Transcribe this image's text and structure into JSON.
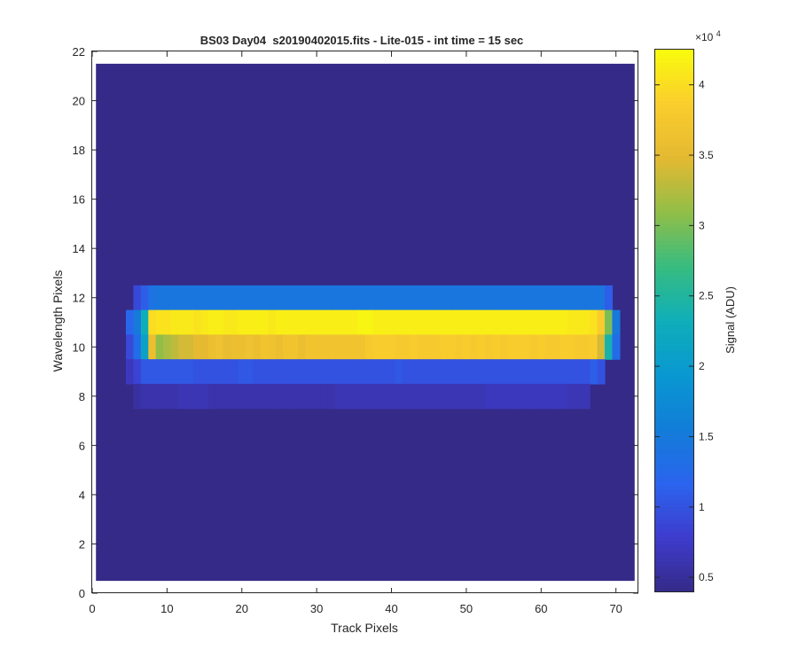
{
  "chart_data": {
    "type": "heatmap",
    "title": "BS03 Day04  s20190402015.fits - Lite-015 - int time = 15 sec",
    "xlabel": "Track Pixels",
    "ylabel": "Wavelength Pixels",
    "xlim": [
      0,
      73
    ],
    "ylim": [
      0,
      22
    ],
    "x_ticks": [
      0,
      10,
      20,
      30,
      40,
      50,
      60,
      70
    ],
    "y_ticks": [
      0,
      2,
      4,
      6,
      8,
      10,
      12,
      14,
      16,
      18,
      20,
      22
    ],
    "grid": false,
    "cell_x_range": [
      1,
      72
    ],
    "cell_y_range": [
      1,
      21
    ],
    "background_value": 4000,
    "colorbar": {
      "label": "Signal (ADU)",
      "multiplier_label": "×10",
      "multiplier_exponent": "4",
      "clim": [
        0.4,
        4.25
      ],
      "ticks": [
        0.5,
        1,
        1.5,
        2,
        2.5,
        3,
        3.5,
        4
      ],
      "tick_labels": [
        "0.5",
        "1",
        "1.5",
        "2",
        "2.5",
        "3",
        "3.5",
        "4"
      ],
      "colormap": "parula"
    },
    "rows": [
      {
        "wavelength_pixel": 12,
        "x_start": 6,
        "x_end": 69,
        "values": [
          9000,
          11000,
          14000,
          14500,
          14500,
          14500,
          14500,
          14500,
          14500,
          14500,
          14500,
          14500,
          14500,
          14500,
          14500,
          14500,
          14500,
          14500,
          14500,
          14500,
          14500,
          14500,
          14500,
          14500,
          14500,
          14500,
          14500,
          14500,
          14500,
          14500,
          14500,
          14500,
          14500,
          14500,
          14500,
          14500,
          14500,
          14500,
          14500,
          14500,
          14500,
          14500,
          14500,
          14500,
          14500,
          14500,
          14500,
          14500,
          14500,
          14500,
          14500,
          14500,
          14500,
          14500,
          14500,
          14500,
          14500,
          14500,
          14500,
          14500,
          14500,
          14500,
          14500,
          11000
        ]
      },
      {
        "wavelength_pixel": 11,
        "x_start": 5,
        "x_end": 70,
        "values": [
          12000,
          15000,
          23000,
          40000,
          40500,
          40500,
          41000,
          41000,
          41000,
          40500,
          41000,
          41500,
          41500,
          41000,
          41000,
          41500,
          41500,
          41500,
          41500,
          41000,
          41500,
          41500,
          41500,
          41500,
          41500,
          41500,
          41500,
          41500,
          41500,
          41500,
          41500,
          42000,
          42000,
          41500,
          41500,
          41500,
          41500,
          41500,
          41500,
          41500,
          41500,
          41500,
          41500,
          41500,
          41500,
          41500,
          41500,
          41500,
          41500,
          41500,
          41500,
          41500,
          41500,
          41500,
          41500,
          41500,
          41500,
          41500,
          41500,
          41000,
          41000,
          41000,
          40500,
          38500,
          30000,
          15000
        ]
      },
      {
        "wavelength_pixel": 10,
        "x_start": 5,
        "x_end": 70,
        "values": [
          9000,
          13000,
          21000,
          36000,
          31000,
          32000,
          33000,
          34000,
          34000,
          35000,
          35000,
          36000,
          36500,
          35500,
          36000,
          36000,
          36500,
          36000,
          37000,
          36500,
          36000,
          37000,
          37000,
          36000,
          37000,
          37000,
          37000,
          37000,
          37000,
          37000,
          37000,
          37000,
          38000,
          38500,
          38500,
          38500,
          38000,
          38000,
          38500,
          38000,
          38000,
          38000,
          38500,
          38500,
          38000,
          38500,
          38000,
          38500,
          38000,
          38500,
          38000,
          38500,
          38500,
          38500,
          38000,
          38500,
          38000,
          38000,
          38500,
          38500,
          38000,
          38000,
          38500,
          34000,
          24000,
          13000
        ]
      },
      {
        "wavelength_pixel": 9,
        "x_start": 5,
        "x_end": 69,
        "values": [
          7000,
          8500,
          10500,
          10500,
          10500,
          10500,
          10500,
          10500,
          10500,
          10000,
          10000,
          10000,
          10000,
          10000,
          10000,
          10500,
          10500,
          10000,
          10000,
          10000,
          10000,
          10000,
          10000,
          10000,
          10000,
          10000,
          10000,
          10000,
          10000,
          10000,
          10000,
          10000,
          10000,
          10000,
          10000,
          10000,
          10500,
          10000,
          10000,
          10000,
          10000,
          10000,
          10000,
          10000,
          10000,
          10000,
          10000,
          10000,
          10000,
          10000,
          10000,
          10000,
          10000,
          10000,
          10000,
          10000,
          10000,
          10000,
          10000,
          10000,
          10000,
          10000,
          11000,
          10000
        ]
      },
      {
        "wavelength_pixel": 8,
        "x_start": 6,
        "x_end": 67,
        "values": [
          5500,
          6000,
          6000,
          6000,
          6000,
          6000,
          6500,
          6500,
          6500,
          6500,
          6000,
          6000,
          6000,
          6000,
          6000,
          6000,
          6000,
          6000,
          6000,
          6000,
          6000,
          6000,
          6000,
          6000,
          6000,
          6000,
          6000,
          6500,
          6500,
          6500,
          6500,
          6500,
          6500,
          6500,
          6500,
          6500,
          6500,
          6500,
          6500,
          6500,
          6500,
          6500,
          6500,
          6500,
          6500,
          6500,
          6500,
          7000,
          7000,
          7000,
          7000,
          7000,
          7000,
          7000,
          7000,
          7000,
          7000,
          7000,
          6500,
          6500,
          6500
        ]
      }
    ]
  }
}
